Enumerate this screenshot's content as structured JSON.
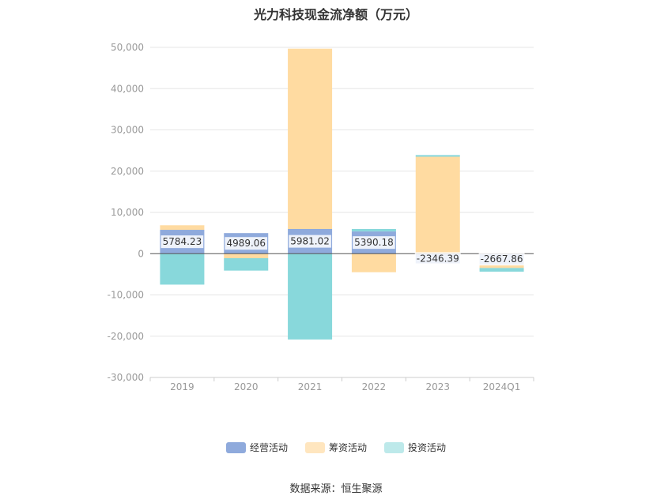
{
  "chart_data": {
    "type": "bar",
    "stacked": true,
    "title": "光力科技现金流净额（万元）",
    "categories": [
      "2019",
      "2020",
      "2021",
      "2022",
      "2023",
      "2024Q1"
    ],
    "series": [
      {
        "name": "经营活动",
        "color": "#8faadc",
        "values": [
          5784.23,
          4989.06,
          5981.02,
          5390.18,
          -2346.39,
          -2667.86
        ]
      },
      {
        "name": "筹资活动",
        "color": "#ffdba1",
        "values": [
          1100,
          -1100,
          43700,
          -4500,
          23500,
          -800
        ]
      },
      {
        "name": "投资活动",
        "color": "#88d8db",
        "values": [
          -7500,
          -3000,
          -20800,
          600,
          400,
          -900
        ]
      }
    ],
    "data_labels": [
      "5784.23",
      "4989.06",
      "5981.02",
      "5390.18",
      "-2346.39",
      "-2667.86"
    ],
    "ylim": [
      -30000,
      50000
    ],
    "yticks": [
      50000,
      40000,
      30000,
      20000,
      10000,
      0,
      -10000,
      -20000,
      -30000
    ],
    "ytick_labels": [
      "50,000",
      "40,000",
      "30,000",
      "20,000",
      "10,000",
      "0",
      "-10,000",
      "-20,000",
      "-30,000"
    ],
    "grid": true,
    "legend_position": "bottom"
  },
  "legend": {
    "items": [
      {
        "label": "经营活动",
        "color": "#8faadc"
      },
      {
        "label": "筹资活动",
        "color": "#ffe6bf"
      },
      {
        "label": "投资活动",
        "color": "#bde9ea"
      }
    ]
  },
  "source": "数据来源：恒生聚源"
}
